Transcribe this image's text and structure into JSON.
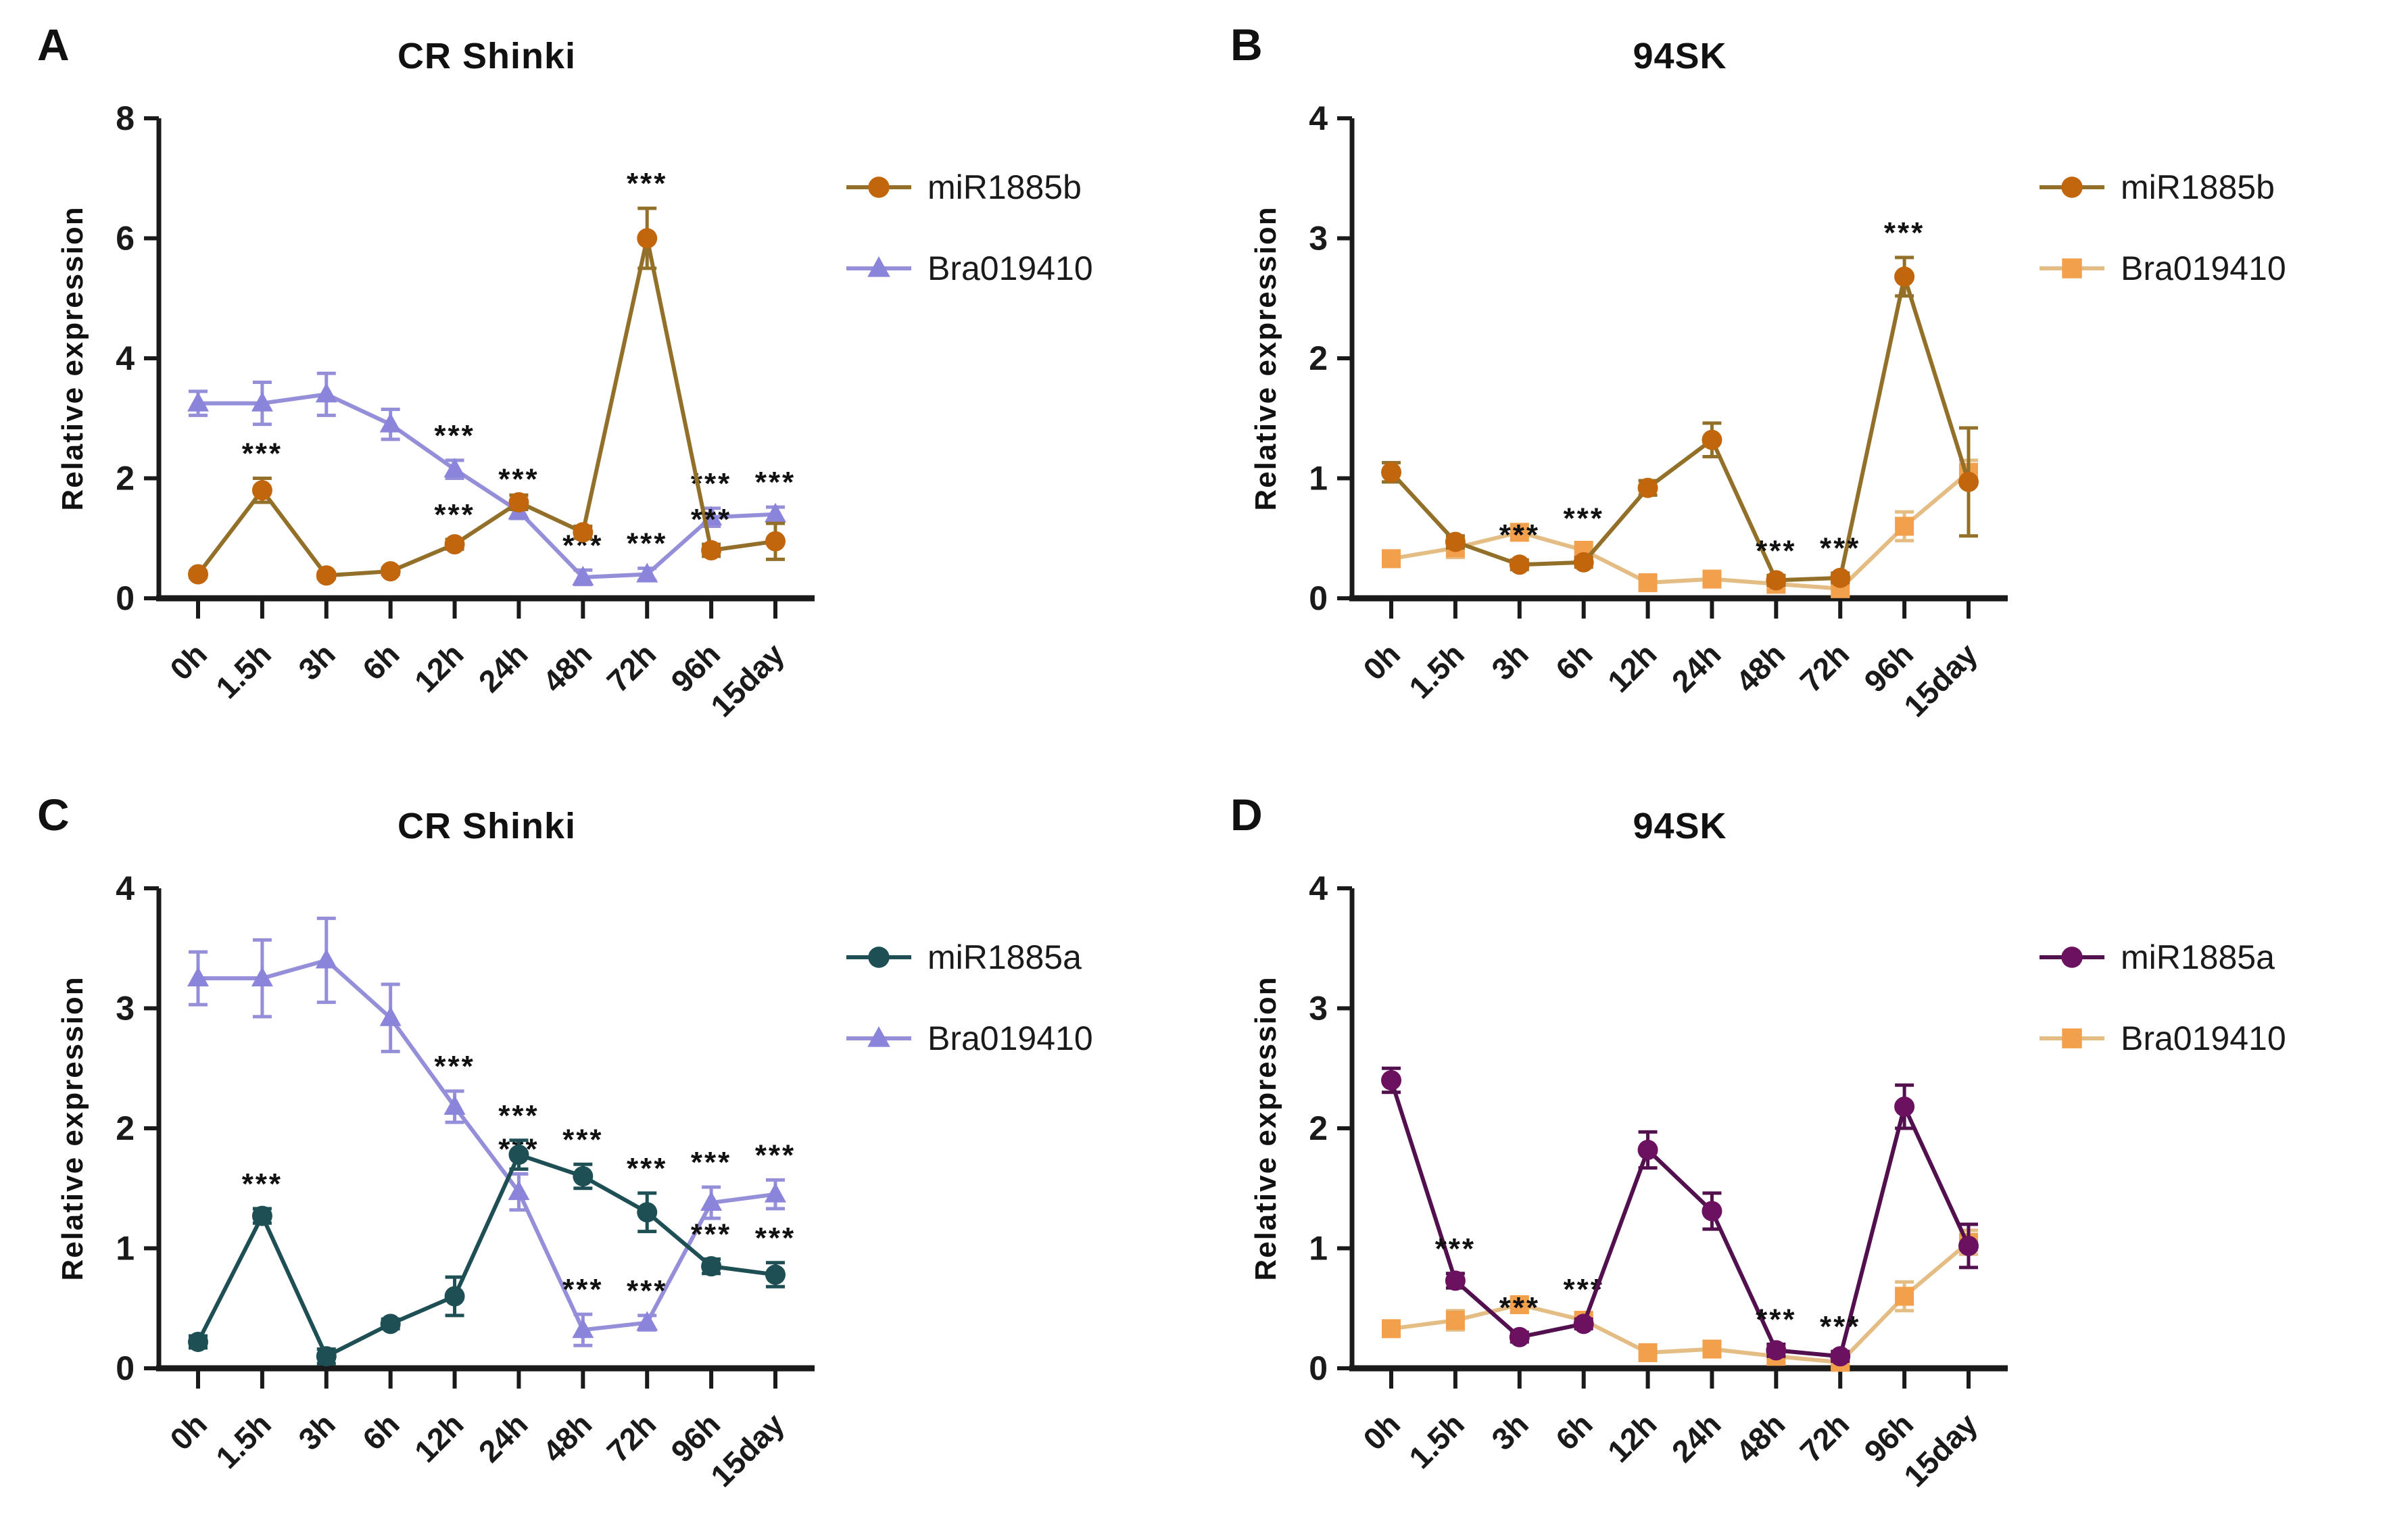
{
  "background_color": "#ffffff",
  "axis_color": "#1a1a1a",
  "significance_symbol": "***",
  "chart_data": [
    {
      "panel_label": "A",
      "title": "CR Shinki",
      "type": "line",
      "xlabel": "",
      "ylabel": "Relative expression",
      "ylim": [
        0,
        8
      ],
      "yticks": [
        0,
        2,
        4,
        6,
        8
      ],
      "grid": "off",
      "legend_position": "right",
      "categories": [
        "0h",
        "1.5h",
        "3h",
        "6h",
        "12h",
        "24h",
        "48h",
        "72h",
        "96h",
        "15day"
      ],
      "series": [
        {
          "name": "miR1885b",
          "marker": "circle",
          "marker_color": "#c2660d",
          "line_color": "#93702a",
          "values": [
            0.4,
            1.8,
            0.38,
            0.45,
            0.9,
            1.6,
            1.1,
            6.0,
            0.8,
            0.95
          ],
          "errors": [
            0.05,
            0.2,
            0.05,
            0.05,
            0.08,
            0.12,
            0.1,
            0.5,
            0.1,
            0.3
          ],
          "sig": [
            "",
            "***",
            "",
            "",
            "***",
            "",
            "",
            "***",
            "***",
            ""
          ]
        },
        {
          "name": "Bra019410",
          "marker": "triangle",
          "marker_color": "#8a84db",
          "line_color": "#958fd9",
          "values": [
            3.25,
            3.25,
            3.4,
            2.9,
            2.15,
            1.45,
            0.35,
            0.4,
            1.35,
            1.4
          ],
          "errors": [
            0.2,
            0.35,
            0.35,
            0.25,
            0.15,
            0.12,
            0.12,
            0.1,
            0.15,
            0.12
          ],
          "sig": [
            "",
            "",
            "",
            "",
            "***",
            "***",
            "***",
            "***",
            "***",
            "***"
          ]
        }
      ]
    },
    {
      "panel_label": "B",
      "title": "94SK",
      "type": "line",
      "xlabel": "",
      "ylabel": "Relative expression",
      "ylim": [
        0,
        4
      ],
      "yticks": [
        0,
        1,
        2,
        3,
        4
      ],
      "grid": "off",
      "legend_position": "right",
      "categories": [
        "0h",
        "1.5h",
        "3h",
        "6h",
        "12h",
        "24h",
        "48h",
        "72h",
        "96h",
        "15day"
      ],
      "series": [
        {
          "name": "miR1885b",
          "marker": "circle",
          "marker_color": "#c2660d",
          "line_color": "#93702a",
          "values": [
            1.05,
            0.47,
            0.28,
            0.3,
            0.92,
            1.32,
            0.15,
            0.17,
            2.68,
            0.97
          ],
          "errors": [
            0.08,
            0.05,
            0.04,
            0.04,
            0.06,
            0.14,
            0.04,
            0.04,
            0.16,
            0.45
          ],
          "sig": [
            "",
            "",
            "***",
            "",
            "",
            "",
            "***",
            "***",
            "***",
            ""
          ]
        },
        {
          "name": "Bra019410",
          "marker": "square",
          "marker_color": "#f3a04c",
          "line_color": "#e4bd85",
          "values": [
            0.33,
            0.42,
            0.55,
            0.4,
            0.13,
            0.16,
            0.12,
            0.08,
            0.6,
            1.05
          ],
          "errors": [
            0.05,
            0.08,
            0.06,
            0.06,
            0.05,
            0.04,
            0.07,
            0.06,
            0.12,
            0.1
          ],
          "sig": [
            "",
            "",
            "",
            "***",
            "",
            "",
            "",
            "",
            "",
            ""
          ]
        }
      ]
    },
    {
      "panel_label": "C",
      "title": "CR Shinki",
      "type": "line",
      "xlabel": "",
      "ylabel": "Relative expression",
      "ylim": [
        0,
        4
      ],
      "yticks": [
        0,
        1,
        2,
        3,
        4
      ],
      "grid": "off",
      "legend_position": "right",
      "categories": [
        "0h",
        "1.5h",
        "3h",
        "6h",
        "12h",
        "24h",
        "48h",
        "72h",
        "96h",
        "15day"
      ],
      "series": [
        {
          "name": "miR1885a",
          "marker": "circle",
          "marker_color": "#1d4f55",
          "line_color": "#1d4f55",
          "values": [
            0.22,
            1.27,
            0.1,
            0.37,
            0.6,
            1.78,
            1.6,
            1.3,
            0.85,
            0.78
          ],
          "errors": [
            0.05,
            0.06,
            0.06,
            0.04,
            0.16,
            0.12,
            0.1,
            0.16,
            0.06,
            0.1
          ],
          "sig": [
            "",
            "***",
            "",
            "",
            "",
            "***",
            "***",
            "***",
            "***",
            "***"
          ]
        },
        {
          "name": "Bra019410",
          "marker": "triangle",
          "marker_color": "#8a84db",
          "line_color": "#958fd9",
          "values": [
            3.25,
            3.25,
            3.4,
            2.92,
            2.18,
            1.47,
            0.32,
            0.38,
            1.38,
            1.45
          ],
          "errors": [
            0.22,
            0.32,
            0.35,
            0.28,
            0.13,
            0.15,
            0.13,
            0.06,
            0.13,
            0.12
          ],
          "sig": [
            "",
            "",
            "",
            "",
            "***",
            "***",
            "***",
            "***",
            "***",
            "***"
          ]
        }
      ]
    },
    {
      "panel_label": "D",
      "title": "94SK",
      "type": "line",
      "xlabel": "",
      "ylabel": "Relative expression",
      "ylim": [
        0,
        4
      ],
      "yticks": [
        0,
        1,
        2,
        3,
        4
      ],
      "grid": "off",
      "legend_position": "right",
      "categories": [
        "0h",
        "1.5h",
        "3h",
        "6h",
        "12h",
        "24h",
        "48h",
        "72h",
        "96h",
        "15day"
      ],
      "series": [
        {
          "name": "miR1885a",
          "marker": "circle",
          "marker_color": "#6b1160",
          "line_color": "#53104e",
          "values": [
            2.4,
            0.73,
            0.26,
            0.37,
            1.82,
            1.31,
            0.15,
            0.1,
            2.18,
            1.02
          ],
          "errors": [
            0.1,
            0.06,
            0.04,
            0.04,
            0.15,
            0.15,
            0.05,
            0.04,
            0.18,
            0.18
          ],
          "sig": [
            "",
            "***",
            "***",
            "",
            "",
            "",
            "***",
            "***",
            "",
            ""
          ]
        },
        {
          "name": "Bra019410",
          "marker": "square",
          "marker_color": "#f3a04c",
          "line_color": "#e4bd85",
          "values": [
            0.33,
            0.4,
            0.53,
            0.4,
            0.13,
            0.16,
            0.1,
            0.05,
            0.6,
            1.05
          ],
          "errors": [
            0.06,
            0.08,
            0.06,
            0.05,
            0.04,
            0.04,
            0.06,
            0.05,
            0.12,
            0.1
          ],
          "sig": [
            "",
            "",
            "",
            "***",
            "",
            "",
            "",
            "",
            "",
            ""
          ]
        }
      ]
    }
  ]
}
